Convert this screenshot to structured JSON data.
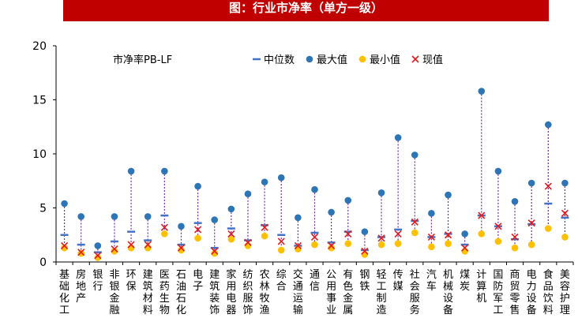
{
  "banner": {
    "title": "图：行业市净率（单方一级）"
  },
  "chart_data": {
    "type": "scatter",
    "title": "图：行业市净率（单方一级）",
    "annotation": "市净率PB-LF",
    "ylim": [
      0,
      20
    ],
    "yticks": [
      0,
      5,
      10,
      15,
      20
    ],
    "grid": false,
    "legend_position": "top",
    "categories": [
      "基础化工",
      "房地产",
      "银行",
      "非银金融",
      "环保",
      "建筑材料",
      "医药生物",
      "石油石化",
      "电子",
      "建筑装饰",
      "家用电器",
      "纺织服饰",
      "农林牧渔",
      "综合",
      "交通运输",
      "通信",
      "公用事业",
      "有色金属",
      "钢铁",
      "轻工制造",
      "传媒",
      "社会服务",
      "汽车",
      "机械设备",
      "煤炭",
      "计算机",
      "国防军工",
      "商贸零售",
      "电力设备",
      "食品饮料",
      "美容护理"
    ],
    "series": [
      {
        "name": "中位数",
        "marker": "dash",
        "color": "#4472c4",
        "values": [
          2.5,
          1.6,
          0.9,
          1.9,
          2.8,
          2.0,
          4.3,
          1.6,
          3.6,
          1.3,
          3.1,
          2.0,
          3.4,
          2.5,
          1.5,
          2.7,
          1.8,
          2.8,
          1.1,
          2.3,
          3.0,
          3.8,
          2.3,
          2.6,
          1.6,
          4.3,
          3.3,
          2.1,
          3.5,
          5.4,
          4.1
        ]
      },
      {
        "name": "最大值",
        "marker": "circle",
        "color": "#2e75b6",
        "values": [
          5.4,
          4.2,
          1.5,
          4.2,
          8.4,
          4.2,
          8.4,
          3.3,
          7.0,
          3.9,
          4.9,
          6.3,
          7.4,
          7.8,
          4.1,
          6.7,
          4.6,
          5.7,
          2.8,
          6.4,
          11.5,
          9.9,
          4.5,
          6.2,
          2.6,
          15.8,
          8.4,
          5.6,
          7.3,
          12.7,
          7.3
        ]
      },
      {
        "name": "最小值",
        "marker": "circle",
        "color": "#ffc000",
        "values": [
          1.3,
          0.8,
          0.4,
          1.0,
          1.3,
          1.3,
          2.6,
          1.1,
          2.2,
          0.8,
          2.1,
          1.5,
          2.4,
          1.1,
          1.2,
          1.6,
          1.3,
          1.7,
          0.7,
          1.6,
          1.7,
          2.7,
          1.4,
          1.7,
          1.0,
          2.6,
          1.9,
          1.3,
          1.6,
          3.1,
          2.3
        ]
      },
      {
        "name": "现值",
        "marker": "x",
        "color": "#e3191c",
        "values": [
          1.5,
          0.9,
          0.6,
          1.2,
          1.6,
          1.6,
          3.2,
          1.3,
          3.0,
          1.0,
          2.6,
          1.8,
          3.2,
          1.9,
          1.5,
          2.3,
          1.5,
          2.6,
          1.0,
          2.2,
          2.6,
          3.7,
          2.3,
          2.5,
          1.3,
          4.3,
          3.3,
          2.3,
          3.6,
          7.0,
          4.5
        ]
      }
    ]
  }
}
